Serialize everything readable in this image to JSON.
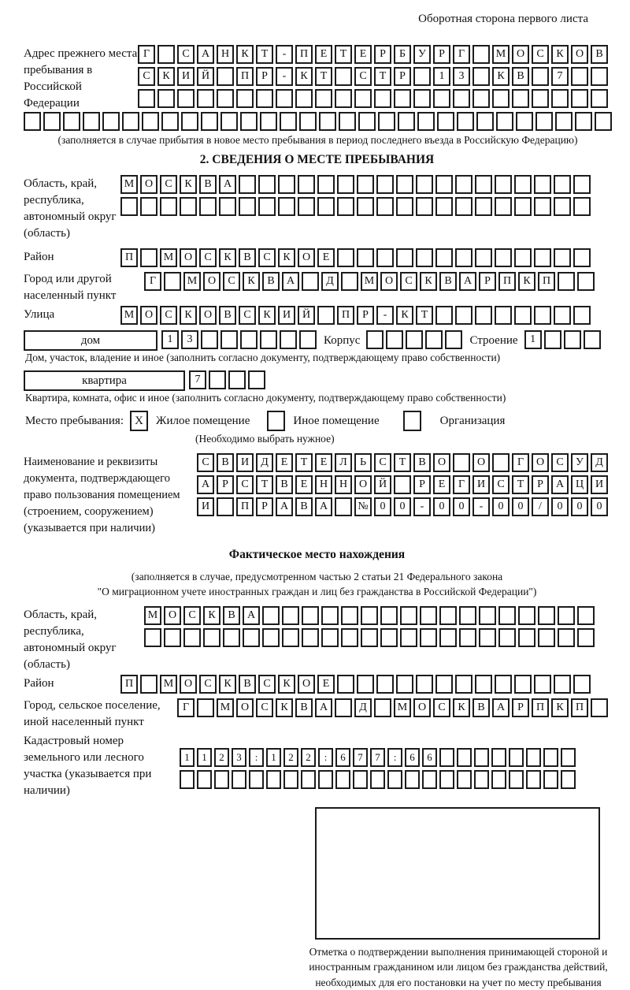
{
  "page": {
    "top_right": "Оборотная сторона первого листа"
  },
  "colors": {
    "ink": "#1c1c1c",
    "paper": "#ffffff"
  },
  "prev_address": {
    "label": "Адрес прежнего места пребывания в Российской Федерации",
    "rows": [
      [
        "Г",
        "",
        "С",
        "А",
        "Н",
        "К",
        "Т",
        "-",
        "П",
        "Е",
        "Т",
        "Е",
        "Р",
        "Б",
        "У",
        "Р",
        "Г",
        "",
        "М",
        "О",
        "С",
        "К",
        "О",
        "В"
      ],
      [
        "С",
        "К",
        "И",
        "Й",
        "",
        "П",
        "Р",
        "-",
        "К",
        "Т",
        "",
        "С",
        "Т",
        "Р",
        "",
        "1",
        "3",
        "",
        "К",
        "В",
        "",
        "7",
        "",
        ""
      ],
      [
        "",
        "",
        "",
        "",
        "",
        "",
        "",
        "",
        "",
        "",
        "",
        "",
        "",
        "",
        "",
        "",
        "",
        "",
        "",
        "",
        "",
        "",
        "",
        ""
      ]
    ],
    "full_row": [
      "",
      "",
      "",
      "",
      "",
      "",
      "",
      "",
      "",
      "",
      "",
      "",
      "",
      "",
      "",
      "",
      "",
      "",
      "",
      "",
      "",
      "",
      "",
      "",
      "",
      "",
      "",
      "",
      "",
      ""
    ],
    "note": "(заполняется в случае прибытия в новое место пребывания в период последнего въезда в Российскую Федерацию)"
  },
  "section2": {
    "title": "2. СВЕДЕНИЯ О МЕСТЕ ПРЕБЫВАНИЯ",
    "region": {
      "label": "Область, край, республика, автономный округ (область)",
      "rows": [
        [
          "М",
          "О",
          "С",
          "К",
          "В",
          "А",
          "",
          "",
          "",
          "",
          "",
          "",
          "",
          "",
          "",
          "",
          "",
          "",
          "",
          "",
          "",
          "",
          "",
          ""
        ],
        [
          "",
          "",
          "",
          "",
          "",
          "",
          "",
          "",
          "",
          "",
          "",
          "",
          "",
          "",
          "",
          "",
          "",
          "",
          "",
          "",
          "",
          "",
          "",
          ""
        ]
      ]
    },
    "district": {
      "label": "Район",
      "row": [
        "П",
        "",
        "М",
        "О",
        "С",
        "К",
        "В",
        "С",
        "К",
        "О",
        "Е",
        "",
        "",
        "",
        "",
        "",
        "",
        "",
        "",
        "",
        "",
        "",
        "",
        ""
      ]
    },
    "city": {
      "label": "Город или другой населенный пункт",
      "row": [
        "Г",
        "",
        "М",
        "О",
        "С",
        "К",
        "В",
        "А",
        "",
        "Д",
        "",
        "М",
        "О",
        "С",
        "К",
        "В",
        "А",
        "Р",
        "П",
        "К",
        "П",
        "",
        ""
      ]
    },
    "street": {
      "label": "Улица",
      "row": [
        "М",
        "О",
        "С",
        "К",
        "О",
        "В",
        "С",
        "К",
        "И",
        "Й",
        "",
        "П",
        "Р",
        "-",
        "К",
        "Т",
        "",
        "",
        "",
        "",
        "",
        "",
        "",
        ""
      ]
    },
    "house": {
      "box_label": "дом",
      "cells": [
        "1",
        "3",
        "",
        "",
        "",
        "",
        "",
        ""
      ],
      "korpus_label": "Корпус",
      "korpus_cells": [
        "",
        "",
        "",
        "",
        ""
      ],
      "stroenie_label": "Строение",
      "stroenie_cells": [
        "1",
        "",
        "",
        ""
      ]
    },
    "house_note": "Дом, участок, владение и иное (заполнить согласно документу, подтверждающему право собственности)",
    "apartment": {
      "box_label": "квартира",
      "cells": [
        "7",
        "",
        "",
        ""
      ]
    },
    "apartment_note": "Квартира, комната, офис и иное (заполнить согласно документу, подтверждающему право собственности)",
    "stay_type": {
      "label": "Место пребывания:",
      "options": [
        {
          "label": "Жилое помещение",
          "mark": "X"
        },
        {
          "label": "Иное помещение",
          "mark": ""
        },
        {
          "label": "Организация",
          "mark": ""
        }
      ],
      "note": "(Необходимо выбрать нужное)"
    },
    "document": {
      "label": "Наименование и реквизиты документа, подтверждающего право пользования помещением (строением, сооружением) (указывается при наличии)",
      "rows": [
        [
          "С",
          "В",
          "И",
          "Д",
          "Е",
          "Т",
          "Е",
          "Л",
          "Ь",
          "С",
          "Т",
          "В",
          "О",
          "",
          "О",
          "",
          "Г",
          "О",
          "С",
          "У",
          "Д"
        ],
        [
          "А",
          "Р",
          "С",
          "Т",
          "В",
          "Е",
          "Н",
          "Н",
          "О",
          "Й",
          "",
          "Р",
          "Е",
          "Г",
          "И",
          "С",
          "Т",
          "Р",
          "А",
          "Ц",
          "И"
        ],
        [
          "И",
          "",
          "П",
          "Р",
          "А",
          "В",
          "А",
          "",
          "№",
          "0",
          "0",
          "-",
          "0",
          "0",
          "-",
          "0",
          "0",
          "/",
          "0",
          "0",
          "0"
        ]
      ]
    }
  },
  "actual_location": {
    "title": "Фактическое место нахождения",
    "note_line1": "(заполняется в случае, предусмотренном частью 2 статьи 21 Федерального закона",
    "note_line2": "\"О миграционном учете иностранных граждан и лиц без гражданства в Российской Федерации\")",
    "region": {
      "label": "Область, край, республика, автономный округ (область)",
      "rows": [
        [
          "М",
          "О",
          "С",
          "К",
          "В",
          "А",
          "",
          "",
          "",
          "",
          "",
          "",
          "",
          "",
          "",
          "",
          "",
          "",
          "",
          "",
          "",
          "",
          ""
        ],
        [
          "",
          "",
          "",
          "",
          "",
          "",
          "",
          "",
          "",
          "",
          "",
          "",
          "",
          "",
          "",
          "",
          "",
          "",
          "",
          "",
          "",
          "",
          ""
        ]
      ]
    },
    "district": {
      "label": "Район",
      "row": [
        "П",
        "",
        "М",
        "О",
        "С",
        "К",
        "В",
        "С",
        "К",
        "О",
        "Е",
        "",
        "",
        "",
        "",
        "",
        "",
        "",
        "",
        "",
        "",
        "",
        "",
        ""
      ]
    },
    "city": {
      "label": "Город, сельское поселение, иной населенный пункт",
      "row": [
        "Г",
        "",
        "М",
        "О",
        "С",
        "К",
        "В",
        "А",
        "",
        "Д",
        "",
        "М",
        "О",
        "С",
        "К",
        "В",
        "А",
        "Р",
        "П",
        "К",
        "П",
        ""
      ]
    },
    "cadastre": {
      "label": "Кадастровый номер земельного или лесного участка (указывается при наличии)",
      "rows": [
        [
          "1",
          "1",
          "2",
          "3",
          ":",
          "1",
          "2",
          "2",
          ":",
          "6",
          "7",
          "7",
          ":",
          "6",
          "6",
          "",
          "",
          "",
          "",
          "",
          "",
          "",
          ""
        ],
        [
          "",
          "",
          "",
          "",
          "",
          "",
          "",
          "",
          "",
          "",
          "",
          "",
          "",
          "",
          "",
          "",
          "",
          "",
          "",
          "",
          "",
          "",
          ""
        ]
      ]
    },
    "stamp_caption": "Отметка о подтверждении выполнения принимающей стороной и иностранным гражданином или лицом без гражданства действий, необходимых для его постановки на учет по месту пребывания"
  }
}
